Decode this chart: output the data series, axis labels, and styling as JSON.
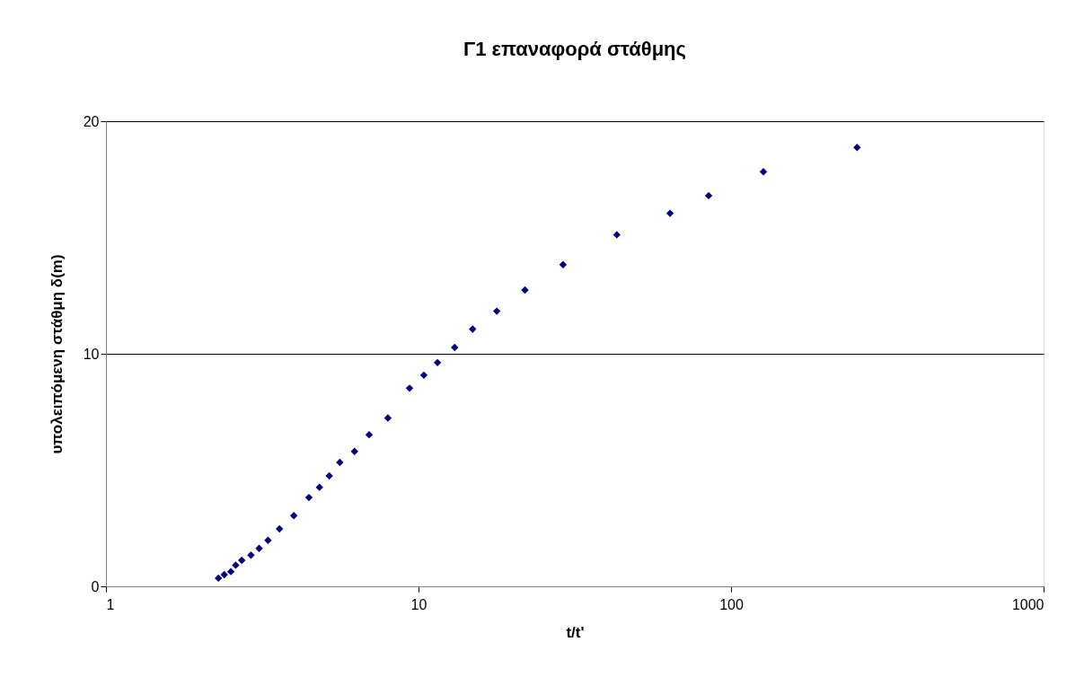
{
  "chart_data": {
    "type": "scatter",
    "title": "Γ1  επαναφορά στάθμης",
    "xlabel": "t/t'",
    "ylabel": "υπολειπόμενη στάθμη δ(m)",
    "log": "x",
    "grid": "y",
    "marker": "diamond",
    "legend": false,
    "xlim": [
      1,
      1000
    ],
    "xticks": [
      1,
      10,
      100,
      1000
    ],
    "ylim": [
      0,
      20
    ],
    "yticks": [
      0,
      10,
      20
    ],
    "series": [
      {
        "color": "#000080",
        "x": [
          2.29,
          2.39,
          2.51,
          2.6,
          2.72,
          2.91,
          3.09,
          3.3,
          3.59,
          3.99,
          4.46,
          4.82,
          5.18,
          5.6,
          6.24,
          6.95,
          7.98,
          9.36,
          10.4,
          11.5,
          13.05,
          14.9,
          17.8,
          21.9,
          29.0,
          43.1,
          63.8,
          84.8,
          126.9,
          253
        ],
        "values": [
          0.35,
          0.5,
          0.63,
          0.91,
          1.12,
          1.34,
          1.63,
          1.98,
          2.47,
          3.04,
          3.82,
          4.26,
          4.75,
          5.33,
          5.8,
          6.52,
          7.24,
          8.52,
          9.08,
          9.62,
          10.27,
          11.06,
          11.83,
          12.74,
          13.83,
          15.12,
          16.04,
          16.8,
          17.83,
          18.87
        ]
      }
    ]
  }
}
